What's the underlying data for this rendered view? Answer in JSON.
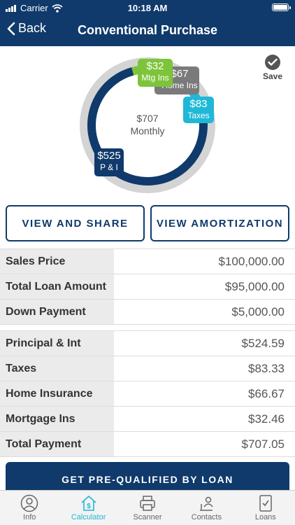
{
  "status_bar": {
    "carrier": "Carrier",
    "time": "10:18 AM"
  },
  "nav": {
    "back_label": "Back",
    "title": "Conventional Purchase"
  },
  "chart_data": {
    "type": "pie",
    "center_value": "$707",
    "center_label": "Monthly",
    "slices": [
      {
        "name": "P & I",
        "label": "$525",
        "value": 524.59,
        "color": "#0f3a6b"
      },
      {
        "name": "Taxes",
        "label": "$83",
        "value": 83.33,
        "color": "#1fb8d6"
      },
      {
        "name": "Home Ins",
        "label": "$67",
        "value": 66.67,
        "color": "#7a7a7a"
      },
      {
        "name": "Mtg Ins",
        "label": "$32",
        "value": 32.46,
        "color": "#7ec43b"
      }
    ]
  },
  "save_label": "Save",
  "buttons": {
    "share": "VIEW AND SHARE",
    "amortization": "VIEW AMORTIZATION"
  },
  "loan_table": [
    {
      "label": "Sales Price",
      "value": "$100,000.00"
    },
    {
      "label": "Total Loan Amount",
      "value": "$95,000.00"
    },
    {
      "label": "Down Payment",
      "value": "$5,000.00"
    }
  ],
  "payment_table": [
    {
      "label": "Principal & Int",
      "value": "$524.59"
    },
    {
      "label": "Taxes",
      "value": "$83.33"
    },
    {
      "label": "Home Insurance",
      "value": "$66.67"
    },
    {
      "label": "Mortgage Ins",
      "value": "$32.46"
    },
    {
      "label": "Total Payment",
      "value": "$707.05"
    }
  ],
  "cta_label": "GET PRE-QUALIFIED BY LOAN",
  "tabs": [
    {
      "label": "Info",
      "icon": "person-icon",
      "active": false
    },
    {
      "label": "Calculator",
      "icon": "house-dollar-icon",
      "active": true
    },
    {
      "label": "Scanner",
      "icon": "printer-icon",
      "active": false
    },
    {
      "label": "Contacts",
      "icon": "contacts-icon",
      "active": false
    },
    {
      "label": "Loans",
      "icon": "document-check-icon",
      "active": false
    }
  ],
  "colors": {
    "primary": "#0f3a6b",
    "accent": "#1fb8d6",
    "green": "#7ec43b",
    "gray": "#7a7a7a"
  }
}
